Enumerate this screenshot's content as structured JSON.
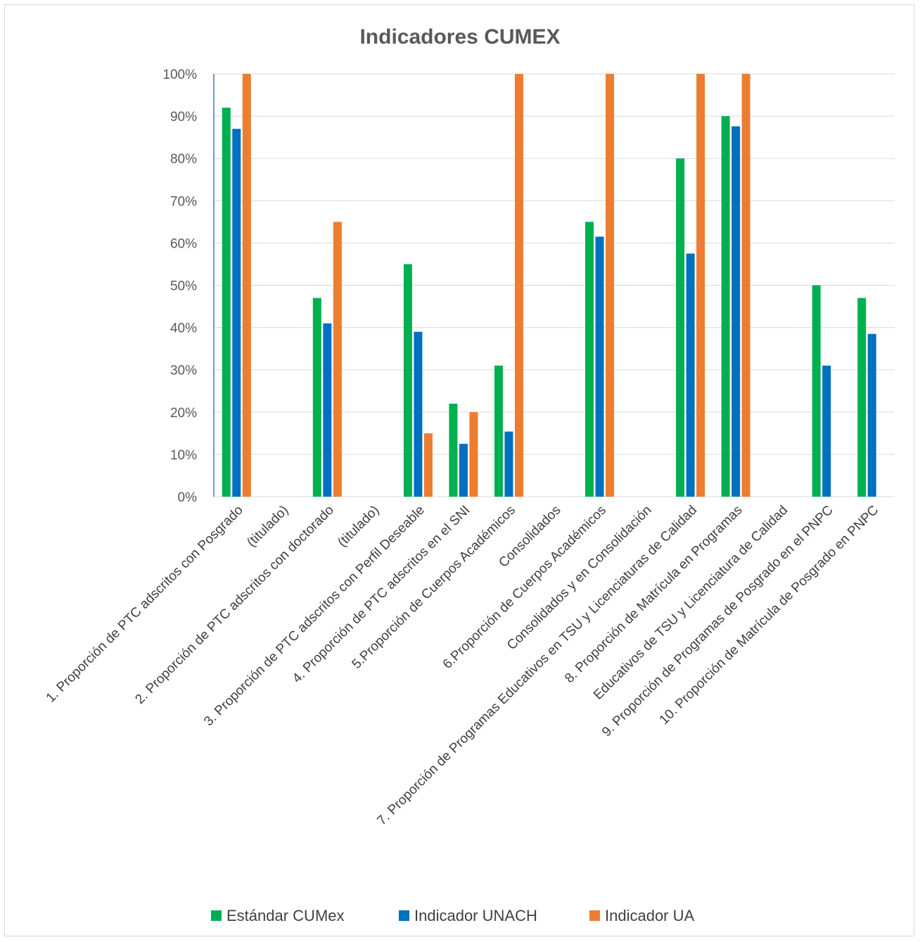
{
  "chart_data": {
    "type": "bar",
    "title": "Indicadores CUMEX",
    "xlabel": "",
    "ylabel": "",
    "ylim": [
      0,
      1
    ],
    "y_ticks": [
      "0%",
      "10%",
      "20%",
      "30%",
      "40%",
      "50%",
      "60%",
      "70%",
      "80%",
      "90%",
      "100%"
    ],
    "grid": true,
    "legend_position": "bottom",
    "categories": [
      "1. Proporción de PTC adscritos con Posgrado",
      "(titulado)",
      "2. Proporción de PTC adscritos con doctorado",
      "(titulado)",
      "3. Proporción de PTC adscritos con Perfil  Deseable",
      "4. Proporción de PTC adscritos en el SNI",
      "5.Proporción  de Cuerpos  Académicos",
      "Consolidados",
      "6.Proporción  de Cuerpos  Académicos",
      "Consolidados y en Consolidación",
      "7. Proporción de Programas Educativos en TSU y Licenciaturas de Calidad",
      "8. Proporción de Matrícula en Programas",
      "Educativos de TSU y Licenciatura de Calidad",
      "9. Proporción de Programas de Posgrado en el PNPC",
      "10. Proporción de Matrícula de Posgrado en PNPC"
    ],
    "series": [
      {
        "name": "Estándar CUMex",
        "color": "#00b050",
        "values": [
          0.92,
          null,
          0.47,
          null,
          0.55,
          0.22,
          0.31,
          null,
          0.65,
          null,
          0.8,
          0.9,
          null,
          0.5,
          0.47
        ]
      },
      {
        "name": "Indicador  UNACH",
        "color": "#0070c0",
        "values": [
          0.87,
          null,
          0.41,
          null,
          0.39,
          0.125,
          0.154,
          null,
          0.615,
          null,
          0.575,
          0.876,
          null,
          0.31,
          0.385
        ]
      },
      {
        "name": "Indicador UA",
        "color": "#ed7d31",
        "values": [
          1.0,
          null,
          0.65,
          null,
          0.15,
          0.2,
          1.0,
          null,
          1.0,
          null,
          1.0,
          1.0,
          null,
          null,
          null
        ]
      }
    ]
  }
}
